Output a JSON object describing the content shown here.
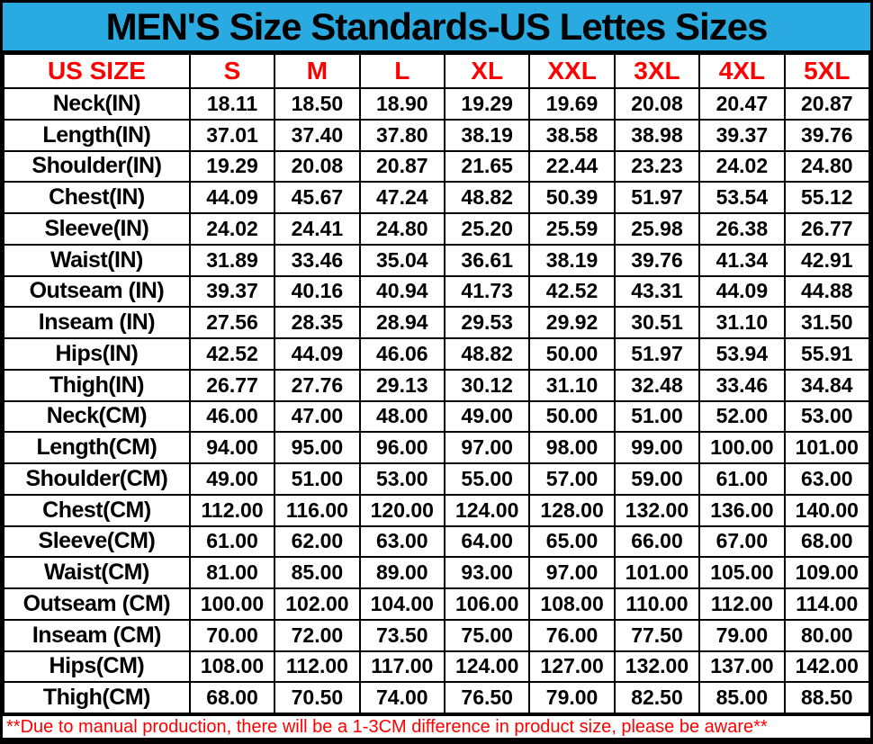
{
  "title": "MEN'S Size Standards-US Lettes Sizes",
  "columns": [
    "US SIZE",
    "S",
    "M",
    "L",
    "XL",
    "XXL",
    "3XL",
    "4XL",
    "5XL"
  ],
  "rows": [
    {
      "label": "Neck(IN)",
      "values": [
        "18.11",
        "18.50",
        "18.90",
        "19.29",
        "19.69",
        "20.08",
        "20.47",
        "20.87"
      ]
    },
    {
      "label": "Length(IN)",
      "values": [
        "37.01",
        "37.40",
        "37.80",
        "38.19",
        "38.58",
        "38.98",
        "39.37",
        "39.76"
      ]
    },
    {
      "label": "Shoulder(IN)",
      "values": [
        "19.29",
        "20.08",
        "20.87",
        "21.65",
        "22.44",
        "23.23",
        "24.02",
        "24.80"
      ]
    },
    {
      "label": "Chest(IN)",
      "values": [
        "44.09",
        "45.67",
        "47.24",
        "48.82",
        "50.39",
        "51.97",
        "53.54",
        "55.12"
      ]
    },
    {
      "label": "Sleeve(IN)",
      "values": [
        "24.02",
        "24.41",
        "24.80",
        "25.20",
        "25.59",
        "25.98",
        "26.38",
        "26.77"
      ]
    },
    {
      "label": "Waist(IN)",
      "values": [
        "31.89",
        "33.46",
        "35.04",
        "36.61",
        "38.19",
        "39.76",
        "41.34",
        "42.91"
      ]
    },
    {
      "label": "Outseam (IN)",
      "values": [
        "39.37",
        "40.16",
        "40.94",
        "41.73",
        "42.52",
        "43.31",
        "44.09",
        "44.88"
      ]
    },
    {
      "label": "Inseam (IN)",
      "values": [
        "27.56",
        "28.35",
        "28.94",
        "29.53",
        "29.92",
        "30.51",
        "31.10",
        "31.50"
      ]
    },
    {
      "label": "Hips(IN)",
      "values": [
        "42.52",
        "44.09",
        "46.06",
        "48.82",
        "50.00",
        "51.97",
        "53.94",
        "55.91"
      ]
    },
    {
      "label": "Thigh(IN)",
      "values": [
        "26.77",
        "27.76",
        "29.13",
        "30.12",
        "31.10",
        "32.48",
        "33.46",
        "34.84"
      ]
    },
    {
      "label": "Neck(CM)",
      "values": [
        "46.00",
        "47.00",
        "48.00",
        "49.00",
        "50.00",
        "51.00",
        "52.00",
        "53.00"
      ]
    },
    {
      "label": "Length(CM)",
      "values": [
        "94.00",
        "95.00",
        "96.00",
        "97.00",
        "98.00",
        "99.00",
        "100.00",
        "101.00"
      ]
    },
    {
      "label": "Shoulder(CM)",
      "values": [
        "49.00",
        "51.00",
        "53.00",
        "55.00",
        "57.00",
        "59.00",
        "61.00",
        "63.00"
      ]
    },
    {
      "label": "Chest(CM)",
      "values": [
        "112.00",
        "116.00",
        "120.00",
        "124.00",
        "128.00",
        "132.00",
        "136.00",
        "140.00"
      ]
    },
    {
      "label": "Sleeve(CM)",
      "values": [
        "61.00",
        "62.00",
        "63.00",
        "64.00",
        "65.00",
        "66.00",
        "67.00",
        "68.00"
      ]
    },
    {
      "label": "Waist(CM)",
      "values": [
        "81.00",
        "85.00",
        "89.00",
        "93.00",
        "97.00",
        "101.00",
        "105.00",
        "109.00"
      ]
    },
    {
      "label": "Outseam (CM)",
      "values": [
        "100.00",
        "102.00",
        "104.00",
        "106.00",
        "108.00",
        "110.00",
        "112.00",
        "114.00"
      ]
    },
    {
      "label": "Inseam (CM)",
      "values": [
        "70.00",
        "72.00",
        "73.50",
        "75.00",
        "76.00",
        "77.50",
        "79.00",
        "80.00"
      ]
    },
    {
      "label": "Hips(CM)",
      "values": [
        "108.00",
        "112.00",
        "117.00",
        "124.00",
        "127.00",
        "132.00",
        "137.00",
        "142.00"
      ]
    },
    {
      "label": "Thigh(CM)",
      "values": [
        "68.00",
        "70.50",
        "74.00",
        "76.50",
        "79.00",
        "82.50",
        "85.00",
        "88.50"
      ]
    }
  ],
  "footer_note": "**Due to manual production, there will be a 1-3CM difference in product size, please be aware**",
  "colors": {
    "title_bg": "#29ABE2",
    "accent_red": "#FF0000",
    "text": "#000000",
    "table_bg": "#FFFFFF"
  }
}
